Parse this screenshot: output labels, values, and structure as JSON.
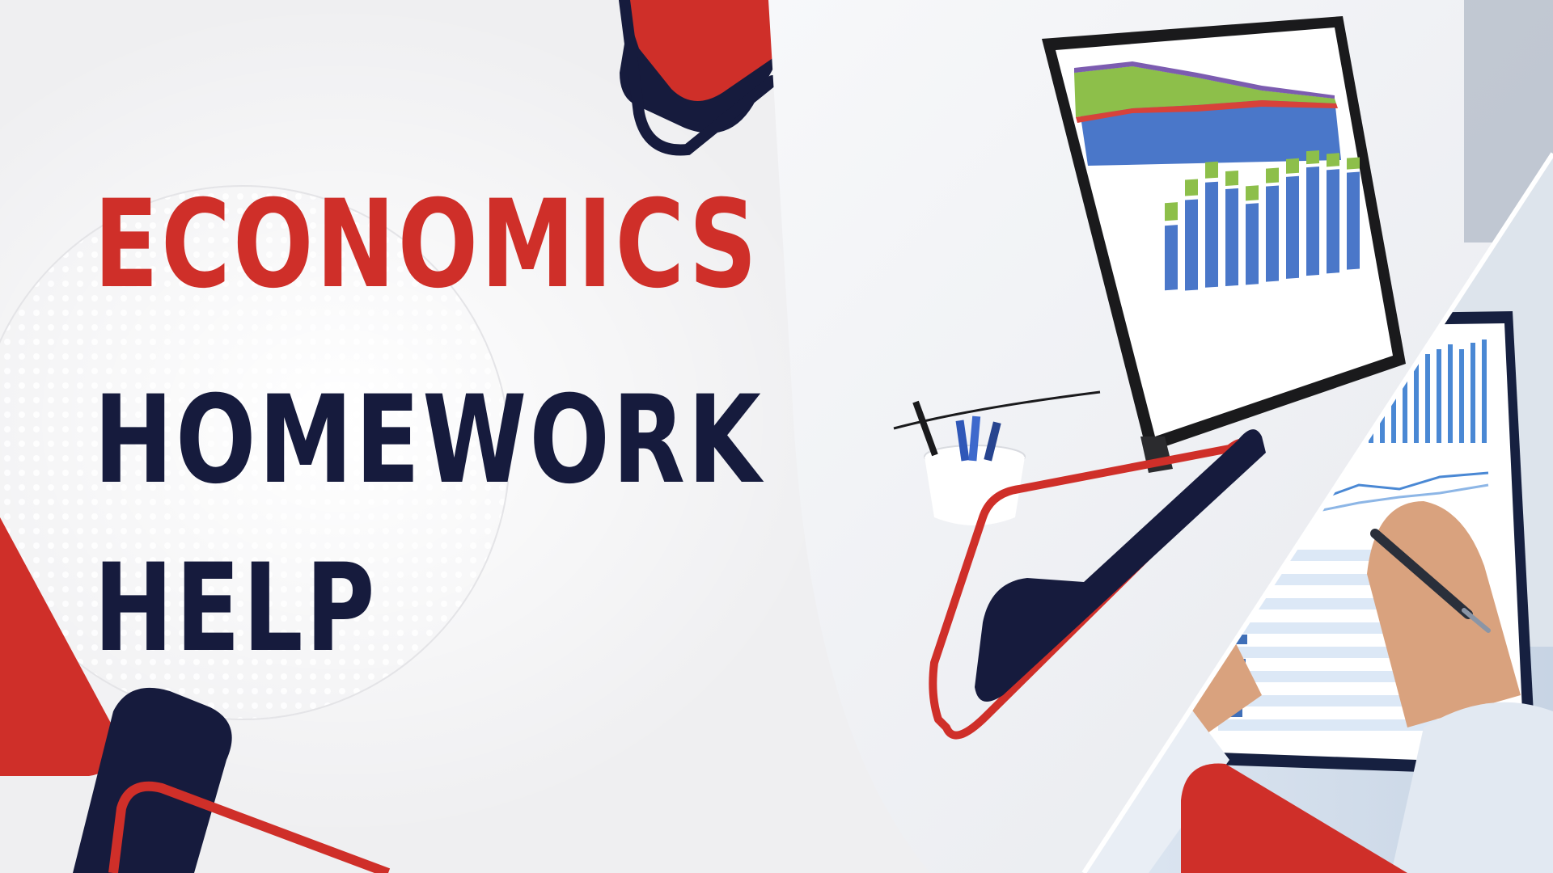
{
  "headline": {
    "line1": "ECONOMICS",
    "line2": "HOMEWORK",
    "line3": "HELP"
  },
  "colors": {
    "accent_red": "#cf2f29",
    "navy": "#161b3d",
    "background": "#f2f2f3"
  },
  "photo": {
    "subject": "monitor-with-charts-and-hands-writing-on-clipboard"
  }
}
